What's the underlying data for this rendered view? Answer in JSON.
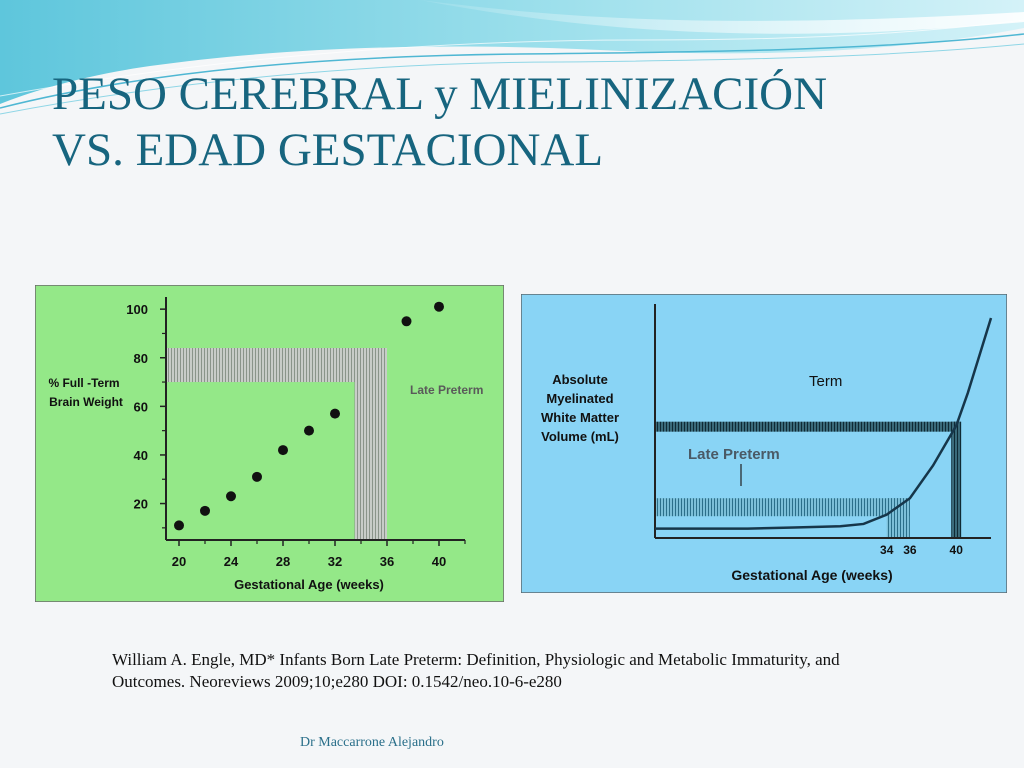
{
  "slide": {
    "title_line1": "PESO CEREBRAL y MIELINIZACIÓN",
    "title_line2": "VS. EDAD GESTACIONAL",
    "citation": "William A. Engle, MD* Infants Born Late Preterm: Definition, Physiologic and Metabolic Immaturity, and Outcomes. Neoreviews 2009;10;e280 DOI: 0.1542/neo.10-6-e280",
    "author": "Dr Maccarrone Alejandro"
  },
  "chart_data": [
    {
      "type": "scatter",
      "ylabel_line1": "% Full -Term",
      "ylabel_line2": "Brain Weight",
      "xlabel": "Gestational Age (weeks)",
      "annotation": "Late Preterm",
      "xlim": [
        19,
        42
      ],
      "ylim": [
        5,
        105
      ],
      "x_ticks": [
        20,
        24,
        28,
        32,
        36,
        40
      ],
      "y_ticks": [
        20,
        40,
        60,
        80,
        100
      ],
      "points": [
        {
          "x": 20,
          "y": 11
        },
        {
          "x": 22,
          "y": 17
        },
        {
          "x": 24,
          "y": 23
        },
        {
          "x": 26,
          "y": 31
        },
        {
          "x": 28,
          "y": 42
        },
        {
          "x": 30,
          "y": 50
        },
        {
          "x": 32,
          "y": 57
        },
        {
          "x": 37.5,
          "y": 95
        },
        {
          "x": 40,
          "y": 101
        }
      ],
      "late_preterm_band_weeks": [
        33.5,
        36
      ],
      "late_preterm_band_y": [
        70,
        84
      ],
      "background": "#94e888"
    },
    {
      "type": "line",
      "ylabel_line1": "Absolute",
      "ylabel_line2": "Myelinated",
      "ylabel_line3": "White Matter",
      "ylabel_line4": "Volume (mL)",
      "xlabel": "Gestational Age (weeks)",
      "annotation_term": "Term",
      "annotation_late": "Late Preterm",
      "x_ticks": [
        34,
        36,
        40
      ],
      "xlim": [
        14,
        43
      ],
      "ylim": [
        0,
        100
      ],
      "series": [
        {
          "x": [
            14,
            18,
            22,
            26,
            30,
            32,
            34,
            36,
            38,
            40,
            41,
            42,
            43
          ],
          "y": [
            4,
            4,
            4,
            4.5,
            5,
            6,
            10,
            17,
            31,
            48,
            62,
            78,
            94
          ]
        }
      ],
      "term_y": 48,
      "late_preterm_y": 17,
      "background": "#89d4f5"
    }
  ]
}
